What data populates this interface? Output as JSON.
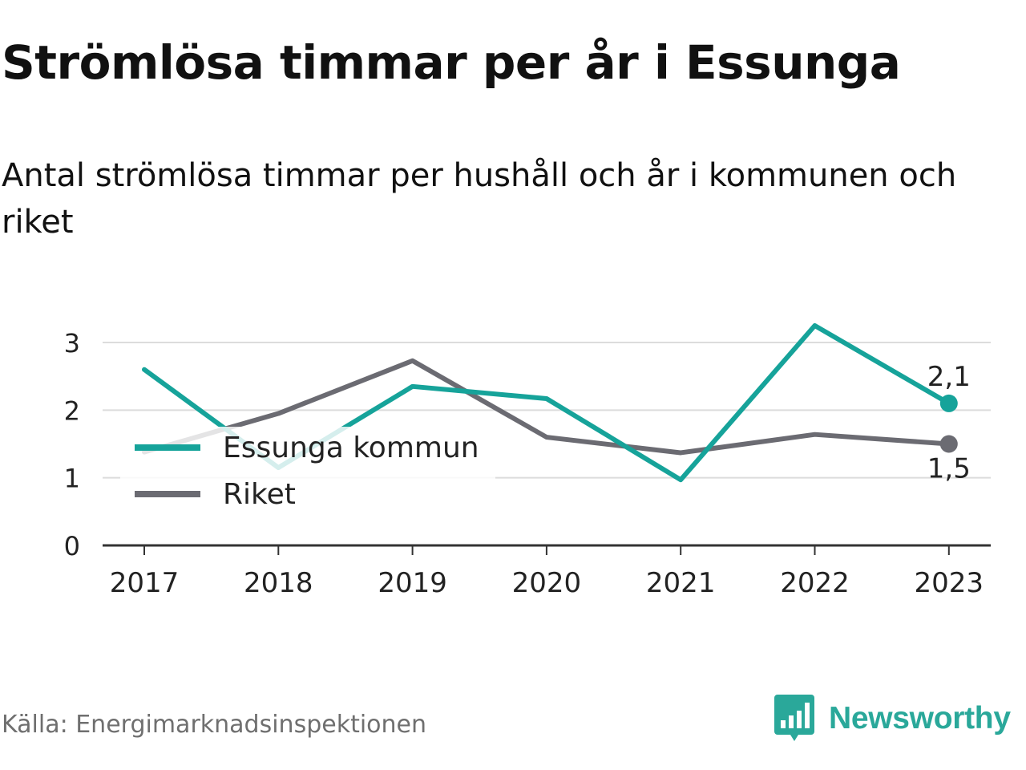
{
  "title": "Strömlösa timmar per år i Essunga",
  "subtitle": "Antal strömlösa timmar per hushåll och år i kommunen och riket",
  "source": "Källa: Energimarknadsinspektionen",
  "brand": {
    "name": "Newsworthy",
    "icon": "newsworthy-logo-icon",
    "color": "#2aa89a"
  },
  "chart_data": {
    "type": "line",
    "title": "Strömlösa timmar per år i Essunga",
    "subtitle": "Antal strömlösa timmar per hushåll och år i kommunen och riket",
    "xlabel": "",
    "ylabel": "",
    "categories": [
      "2017",
      "2018",
      "2019",
      "2020",
      "2021",
      "2022",
      "2023"
    ],
    "ylim": [
      0,
      3.5
    ],
    "yticks": [
      0,
      1,
      2,
      3
    ],
    "grid": true,
    "legend_position": "left",
    "series": [
      {
        "name": "Essunga kommun",
        "color": "#16a39a",
        "values": [
          2.6,
          1.15,
          2.35,
          2.17,
          0.97,
          3.25,
          2.1
        ],
        "end_label": "2,1"
      },
      {
        "name": "Riket",
        "color": "#6b6b72",
        "values": [
          1.38,
          1.95,
          2.73,
          1.6,
          1.37,
          1.64,
          1.5
        ],
        "end_label": "1,5"
      }
    ]
  }
}
